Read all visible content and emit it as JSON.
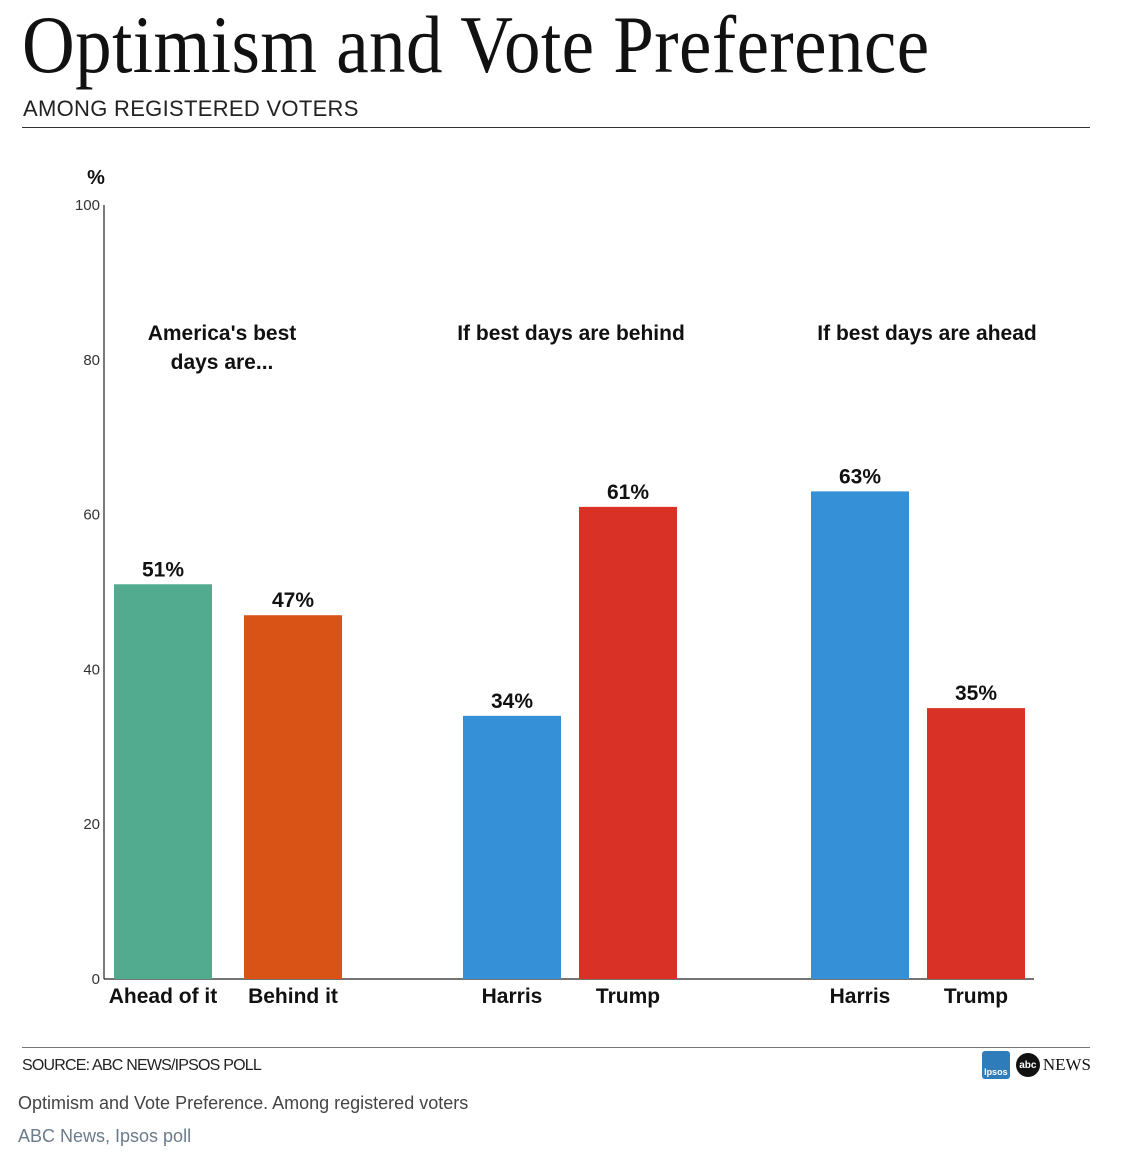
{
  "header": {
    "title": "Optimism and Vote Preference",
    "subtitle": "AMONG REGISTERED VOTERS"
  },
  "footer": {
    "source": "SOURCE: ABC NEWS/IPSOS POLL",
    "ipsos_logo": "Ipsos",
    "abc_logo": "abc",
    "abc_news_word": "NEWS"
  },
  "caption": {
    "text": "Optimism and Vote Preference. Among registered voters",
    "credit": "ABC News, Ipsos poll"
  },
  "colors": {
    "green": "#52ab8f",
    "orange": "#d95316",
    "blue": "#3690d7",
    "red": "#da3126"
  },
  "chart_data": {
    "type": "bar",
    "ylabel": "%",
    "ylim": [
      0,
      100
    ],
    "yticks": [
      0,
      20,
      40,
      60,
      80,
      100
    ],
    "groups": [
      {
        "title_lines": [
          "America's best",
          "days are..."
        ],
        "bars": [
          {
            "label": "Ahead of it",
            "value": 51,
            "value_label": "51%",
            "color": "#52ab8f"
          },
          {
            "label": "Behind it",
            "value": 47,
            "value_label": "47%",
            "color": "#d95316"
          }
        ]
      },
      {
        "title_lines": [
          "If best days are behind"
        ],
        "bars": [
          {
            "label": "Harris",
            "value": 34,
            "value_label": "34%",
            "color": "#3690d7"
          },
          {
            "label": "Trump",
            "value": 61,
            "value_label": "61%",
            "color": "#da3126"
          }
        ]
      },
      {
        "title_lines": [
          "If best days are ahead"
        ],
        "bars": [
          {
            "label": "Harris",
            "value": 63,
            "value_label": "63%",
            "color": "#3690d7"
          },
          {
            "label": "Trump",
            "value": 35,
            "value_label": "35%",
            "color": "#da3126"
          }
        ]
      }
    ]
  }
}
